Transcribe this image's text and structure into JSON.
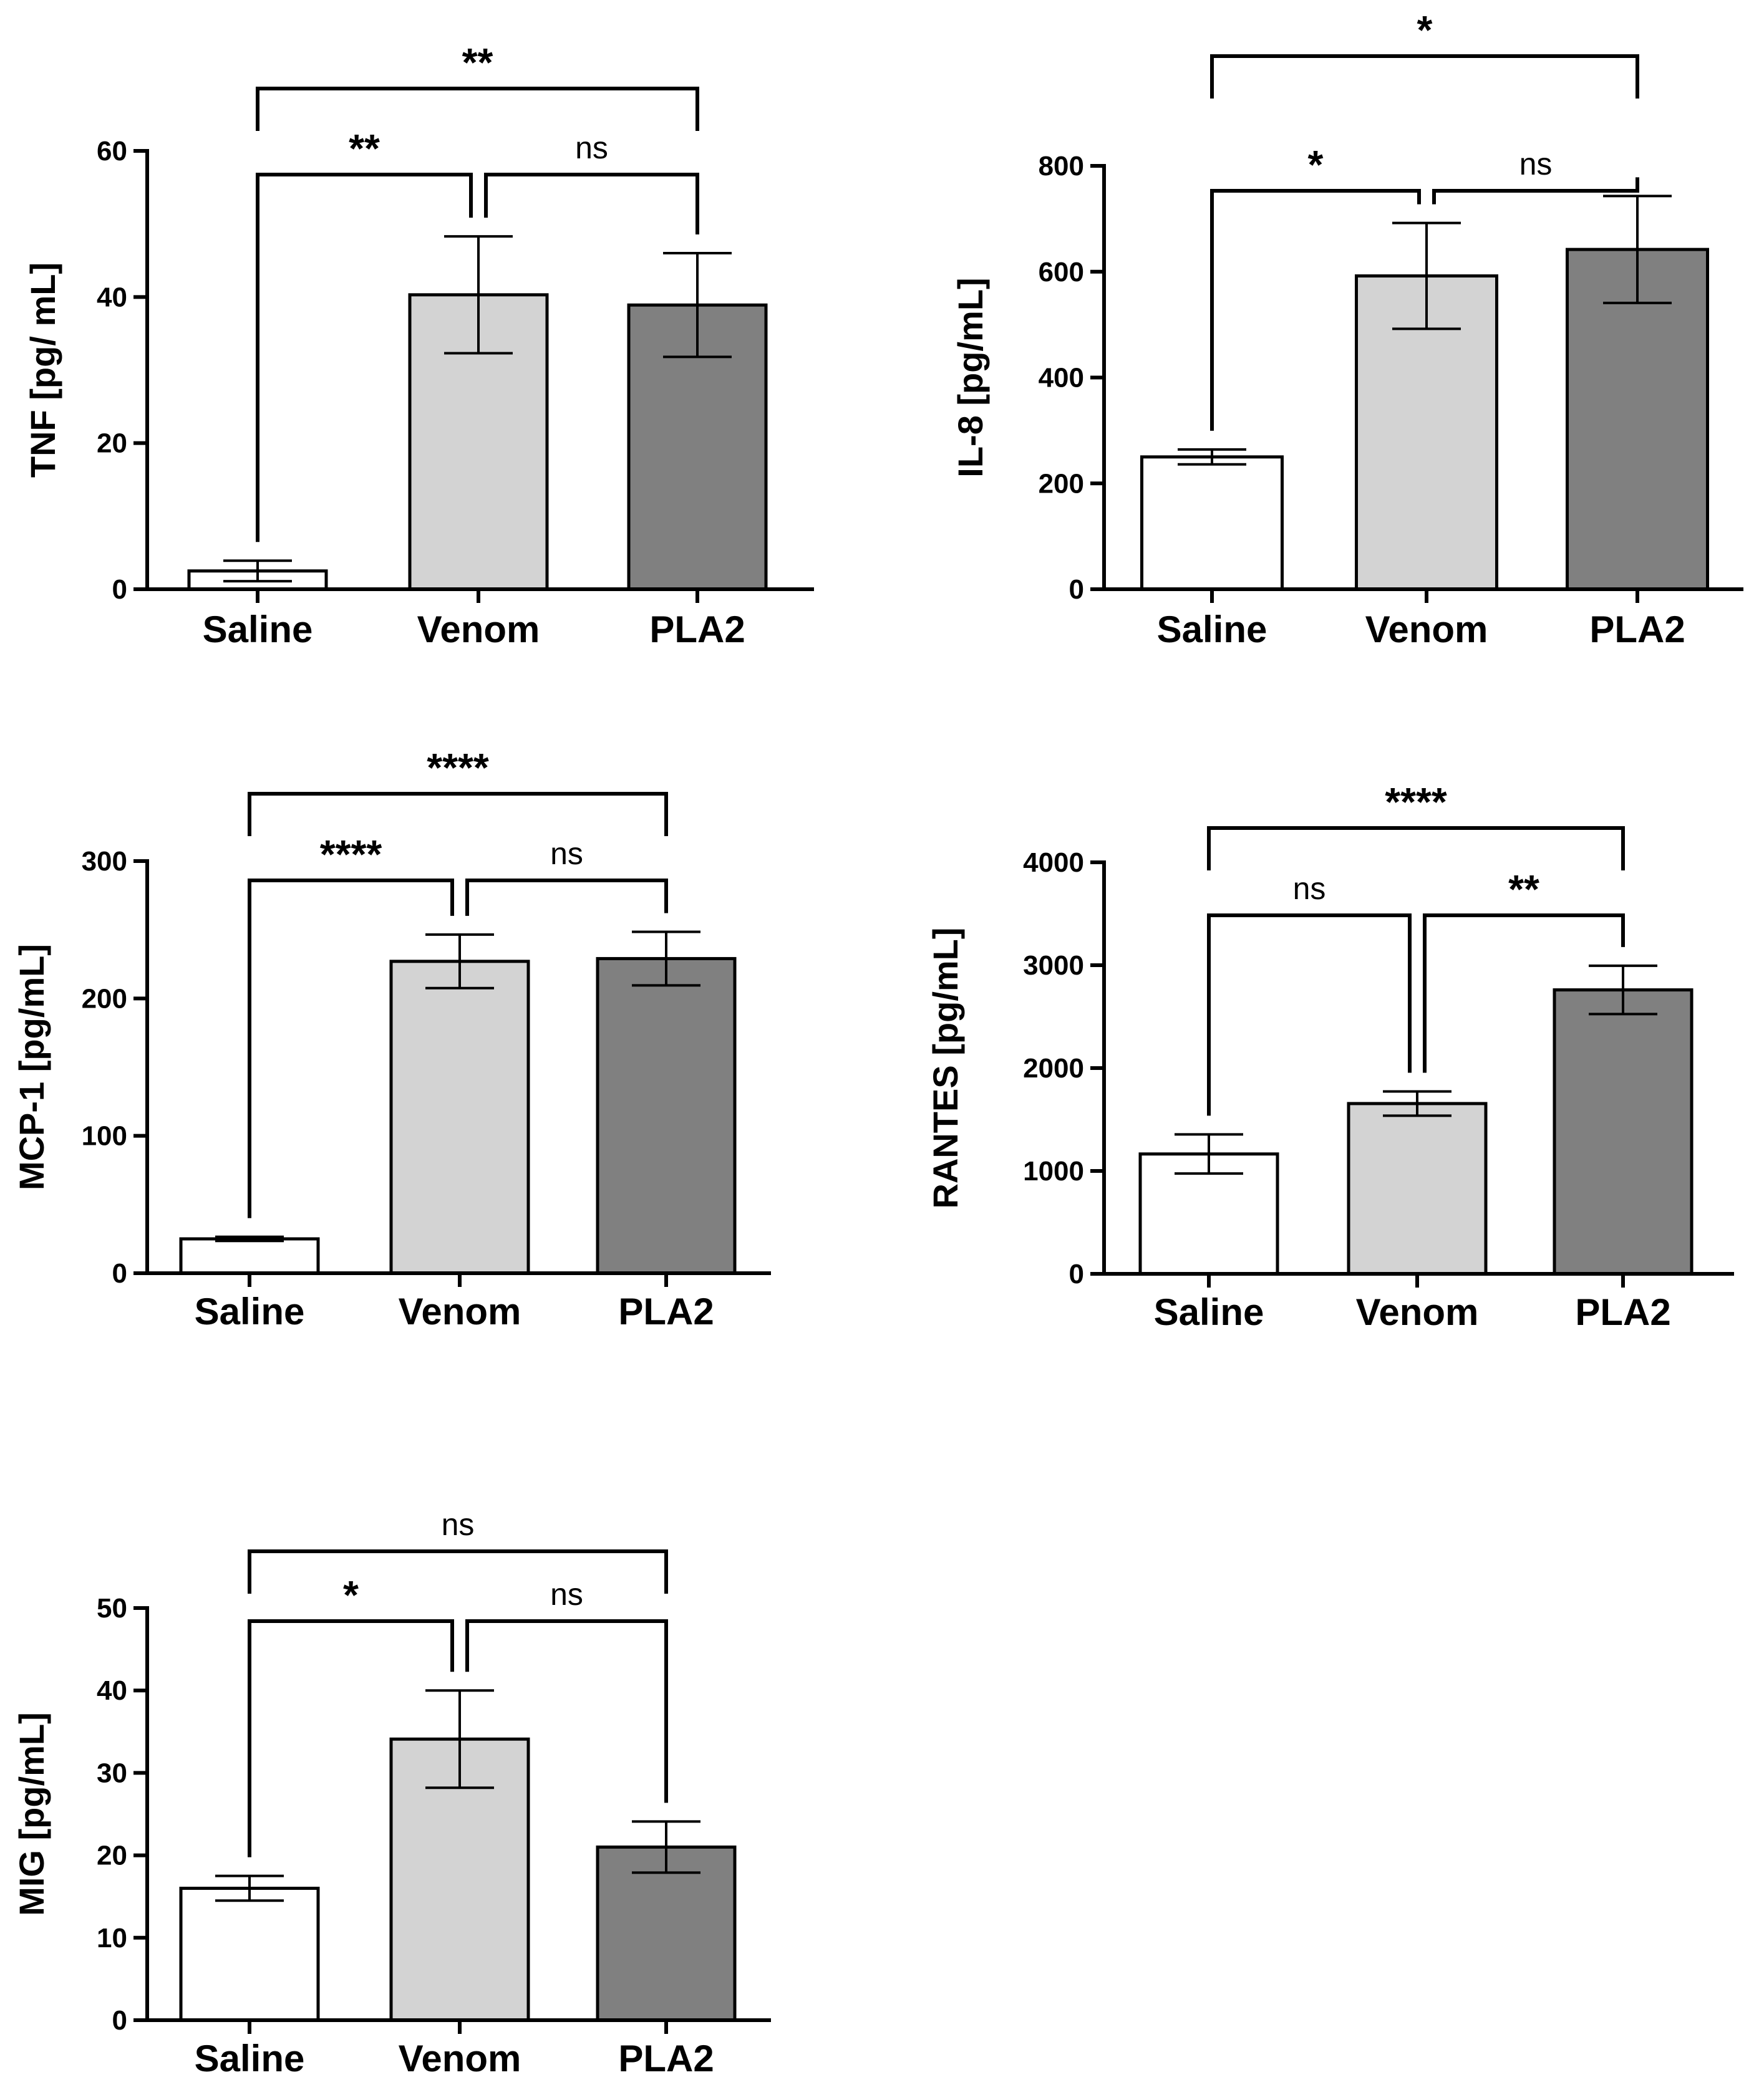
{
  "colors": {
    "axis": "#000000",
    "saline": "#ffffff",
    "venom": "#d3d3d3",
    "pla2": "#808080"
  },
  "chart_data": [
    {
      "type": "bar",
      "title": "",
      "xlabel": "",
      "ylabel": "TNF [pg/ mL]",
      "categories": [
        "Saline",
        "Venom",
        "PLA2"
      ],
      "values": [
        2.5,
        40.3,
        38.9
      ],
      "error": [
        1.4,
        8.0,
        7.1
      ],
      "ylim": [
        0,
        60
      ],
      "yticks": [
        0,
        20,
        40,
        60
      ],
      "significance": [
        {
          "from": 0,
          "to": 1,
          "label": "**"
        },
        {
          "from": 1,
          "to": 2,
          "label": "ns"
        },
        {
          "from": 0,
          "to": 2,
          "label": "**"
        }
      ]
    },
    {
      "type": "bar",
      "title": "",
      "xlabel": "",
      "ylabel": "IL-8 [pg/mL]",
      "categories": [
        "Saline",
        "Venom",
        "PLA2"
      ],
      "values": [
        250,
        592,
        642
      ],
      "error": [
        14,
        100,
        101
      ],
      "ylim": [
        0,
        800
      ],
      "yticks": [
        0,
        200,
        400,
        600,
        800
      ],
      "significance": [
        {
          "from": 0,
          "to": 1,
          "label": "*"
        },
        {
          "from": 1,
          "to": 2,
          "label": "ns"
        },
        {
          "from": 0,
          "to": 2,
          "label": "*"
        }
      ]
    },
    {
      "type": "bar",
      "title": "",
      "xlabel": "",
      "ylabel": "MCP-1 [pg/mL]",
      "categories": [
        "Saline",
        "Venom",
        "PLA2"
      ],
      "values": [
        25,
        227,
        229
      ],
      "error": [
        1.5,
        19.5,
        19.5
      ],
      "ylim": [
        0,
        300
      ],
      "yticks": [
        0,
        100,
        200,
        300
      ],
      "significance": [
        {
          "from": 0,
          "to": 1,
          "label": "****"
        },
        {
          "from": 1,
          "to": 2,
          "label": "ns"
        },
        {
          "from": 0,
          "to": 2,
          "label": "****"
        }
      ]
    },
    {
      "type": "bar",
      "title": "",
      "xlabel": "",
      "ylabel": "RANTES [pg/mL]",
      "categories": [
        "Saline",
        "Venom",
        "PLA2"
      ],
      "values": [
        1165,
        1655,
        2760
      ],
      "error": [
        190,
        118,
        235
      ],
      "ylim": [
        0,
        4000
      ],
      "yticks": [
        0,
        1000,
        2000,
        3000,
        4000
      ],
      "significance": [
        {
          "from": 0,
          "to": 1,
          "label": "ns"
        },
        {
          "from": 1,
          "to": 2,
          "label": "**"
        },
        {
          "from": 0,
          "to": 2,
          "label": "****"
        }
      ]
    },
    {
      "type": "bar",
      "title": "",
      "xlabel": "",
      "ylabel": "MIG [pg/mL]",
      "categories": [
        "Saline",
        "Venom",
        "PLA2"
      ],
      "values": [
        16.0,
        34.1,
        21.0
      ],
      "error": [
        1.5,
        5.9,
        3.1
      ],
      "ylim": [
        0,
        50
      ],
      "yticks": [
        0,
        10,
        20,
        30,
        40,
        50
      ],
      "significance": [
        {
          "from": 0,
          "to": 1,
          "label": "*"
        },
        {
          "from": 1,
          "to": 2,
          "label": "ns"
        },
        {
          "from": 0,
          "to": 2,
          "label": "ns"
        }
      ]
    }
  ]
}
